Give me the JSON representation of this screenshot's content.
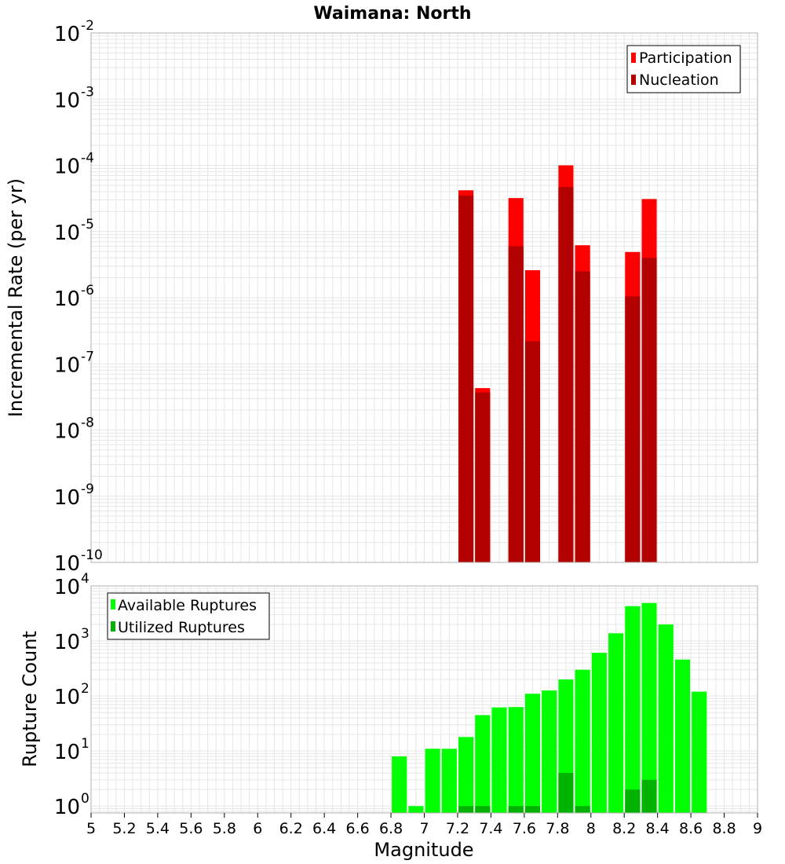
{
  "title": "Waimana: North",
  "xlabel": "Magnitude",
  "x_ticks": [
    "5",
    "5.2",
    "5.4",
    "5.6",
    "5.8",
    "6",
    "6.2",
    "6.4",
    "6.6",
    "6.8",
    "7",
    "7.2",
    "7.4",
    "7.6",
    "7.8",
    "8",
    "8.2",
    "8.4",
    "8.6",
    "8.8",
    "9"
  ],
  "colors": {
    "participation": "#ff0000",
    "nucleation": "#b30000",
    "available": "#00ff00",
    "utilized": "#00b300",
    "grid": "#e6e6e6",
    "frame": "#b0b0b0"
  },
  "chart_data": [
    {
      "type": "bar",
      "panel": "top",
      "ylabel": "Incremental Rate (per yr)",
      "y_scale": "log",
      "ylim": [
        1e-10,
        0.01
      ],
      "xlim": [
        5,
        9
      ],
      "y_tick_exponents": [
        "-10",
        "-9",
        "-8",
        "-7",
        "-6",
        "-5",
        "-4",
        "-3",
        "-2"
      ],
      "y_tick_base": "10",
      "grid": true,
      "legend_position": "top-right",
      "x": [
        7.25,
        7.35,
        7.55,
        7.65,
        7.85,
        7.95,
        8.25,
        8.35
      ],
      "series": [
        {
          "name": "Participation",
          "values": [
            4.2e-05,
            4.3e-08,
            3.2e-05,
            2.6e-06,
            0.0001,
            6.2e-06,
            4.9e-06,
            3.1e-05
          ]
        },
        {
          "name": "Nucleation",
          "values": [
            3.5e-05,
            3.7e-08,
            6e-06,
            2.2e-07,
            4.7e-05,
            2.5e-06,
            1.05e-06,
            4e-06
          ]
        }
      ]
    },
    {
      "type": "bar",
      "panel": "bottom",
      "ylabel": "Rupture Count",
      "y_scale": "log",
      "ylim": [
        0.75,
        10000
      ],
      "xlim": [
        5,
        9
      ],
      "y_tick_exponents": [
        "0",
        "1",
        "2",
        "3",
        "4"
      ],
      "y_tick_base": "10",
      "grid": true,
      "legend_position": "top-left",
      "x": [
        6.85,
        6.95,
        7.05,
        7.15,
        7.25,
        7.35,
        7.45,
        7.55,
        7.65,
        7.75,
        7.85,
        7.95,
        8.05,
        8.15,
        8.25,
        8.35,
        8.45,
        8.55,
        8.65
      ],
      "series": [
        {
          "name": "Available Ruptures",
          "values": [
            8,
            1,
            11,
            11,
            18,
            45,
            62,
            63,
            110,
            126,
            200,
            300,
            610,
            1380,
            4300,
            4900,
            2000,
            460,
            120
          ]
        },
        {
          "name": "Utilized Ruptures",
          "values": [
            0,
            0,
            0,
            0,
            1,
            1,
            0,
            1,
            1,
            0,
            4,
            1,
            0,
            0,
            2,
            3,
            0,
            0,
            0
          ]
        }
      ]
    }
  ]
}
